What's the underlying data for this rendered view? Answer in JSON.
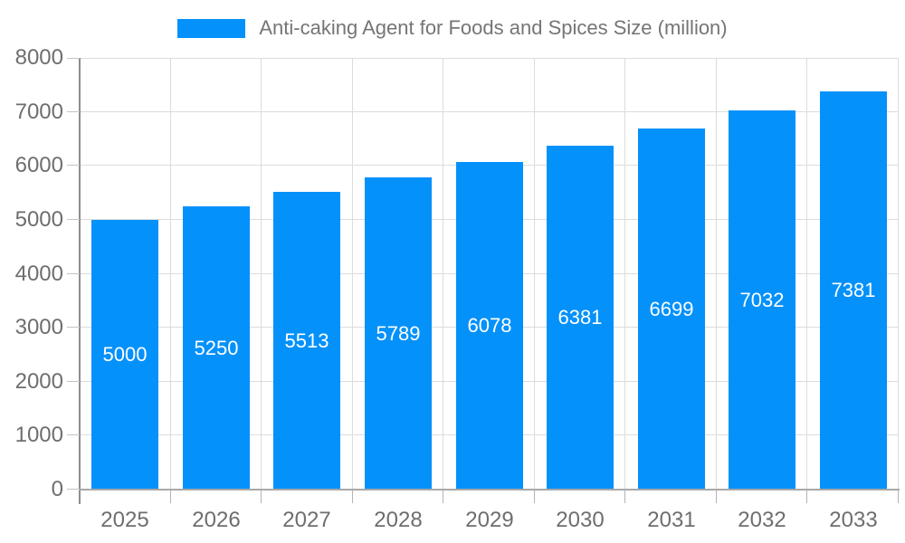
{
  "chart_data": {
    "type": "bar",
    "title": "Anti-caking Agent for Foods and Spices Size (million)",
    "legend_position": "top",
    "grid": true,
    "categories": [
      "2025",
      "2026",
      "2027",
      "2028",
      "2029",
      "2030",
      "2031",
      "2032",
      "2033"
    ],
    "values": [
      5000,
      5250,
      5513,
      5789,
      6078,
      6381,
      6699,
      7032,
      7381
    ],
    "xlabel": "",
    "ylabel": "",
    "ylim": [
      0,
      8000
    ],
    "y_ticks": [
      0,
      1000,
      2000,
      3000,
      4000,
      5000,
      6000,
      7000,
      8000
    ],
    "bar_color": "#0591fa",
    "value_label_color": "#ffffff",
    "axis_text_color": "#6e6e6e",
    "gridline_color": "#dcdcdc"
  }
}
